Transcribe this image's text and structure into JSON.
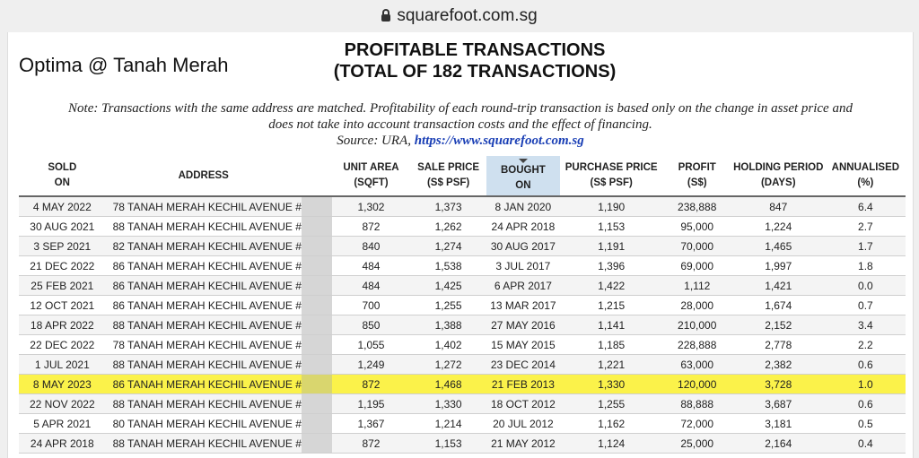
{
  "browser": {
    "url": "squarefoot.com.sg"
  },
  "header": {
    "project": "Optima @ Tanah Merah",
    "title_line1": "PROFITABLE TRANSACTIONS",
    "title_line2": "(TOTAL OF 182 TRANSACTIONS)"
  },
  "note": {
    "line1": "Note: Transactions with the same address are matched. Profitability of each round-trip transaction is based only on the change in asset price and",
    "line2": "does not take into account transaction costs and the effect of financing.",
    "source_label": "Source: URA,",
    "source_link": "https://www.squarefoot.com.sg"
  },
  "table": {
    "columns": [
      {
        "l1": "SOLD",
        "l2": "ON"
      },
      {
        "l1": "ADDRESS",
        "l2": ""
      },
      {
        "l1": "",
        "l2": ""
      },
      {
        "l1": "UNIT AREA",
        "l2": "(SQFT)"
      },
      {
        "l1": "SALE PRICE",
        "l2": "(S$ PSF)"
      },
      {
        "l1": "BOUGHT",
        "l2": "ON"
      },
      {
        "l1": "PURCHASE PRICE",
        "l2": "(S$ PSF)"
      },
      {
        "l1": "PROFIT",
        "l2": "(S$)"
      },
      {
        "l1": "HOLDING PERIOD",
        "l2": "(DAYS)"
      },
      {
        "l1": "ANNUALISED",
        "l2": "(%)"
      }
    ],
    "sorted_column": 5,
    "highlight_color": "#fbf24a",
    "rows": [
      [
        "4 MAY 2022",
        "78 TANAH MERAH KECHIL AVENUE #",
        "",
        "1,302",
        "1,373",
        "8 JAN 2020",
        "1,190",
        "238,888",
        "847",
        "6.4"
      ],
      [
        "30 AUG 2021",
        "88 TANAH MERAH KECHIL AVENUE #",
        "",
        "872",
        "1,262",
        "24 APR 2018",
        "1,153",
        "95,000",
        "1,224",
        "2.7"
      ],
      [
        "3 SEP 2021",
        "82 TANAH MERAH KECHIL AVENUE #",
        "",
        "840",
        "1,274",
        "30 AUG 2017",
        "1,191",
        "70,000",
        "1,465",
        "1.7"
      ],
      [
        "21 DEC 2022",
        "86 TANAH MERAH KECHIL AVENUE #",
        "",
        "484",
        "1,538",
        "3 JUL 2017",
        "1,396",
        "69,000",
        "1,997",
        "1.8"
      ],
      [
        "25 FEB 2021",
        "86 TANAH MERAH KECHIL AVENUE #",
        "",
        "484",
        "1,425",
        "6 APR 2017",
        "1,422",
        "1,112",
        "1,421",
        "0.0"
      ],
      [
        "12 OCT 2021",
        "86 TANAH MERAH KECHIL AVENUE #",
        "",
        "700",
        "1,255",
        "13 MAR 2017",
        "1,215",
        "28,000",
        "1,674",
        "0.7"
      ],
      [
        "18 APR 2022",
        "88 TANAH MERAH KECHIL AVENUE #",
        "",
        "850",
        "1,388",
        "27 MAY 2016",
        "1,141",
        "210,000",
        "2,152",
        "3.4"
      ],
      [
        "22 DEC 2022",
        "78 TANAH MERAH KECHIL AVENUE #",
        "",
        "1,055",
        "1,402",
        "15 MAY 2015",
        "1,185",
        "228,888",
        "2,778",
        "2.2"
      ],
      [
        "1 JUL 2021",
        "88 TANAH MERAH KECHIL AVENUE #",
        "",
        "1,249",
        "1,272",
        "23 DEC 2014",
        "1,221",
        "63,000",
        "2,382",
        "0.6"
      ],
      [
        "8 MAY 2023",
        "86 TANAH MERAH KECHIL AVENUE #",
        "",
        "872",
        "1,468",
        "21 FEB 2013",
        "1,330",
        "120,000",
        "3,728",
        "1.0"
      ],
      [
        "22 NOV 2022",
        "88 TANAH MERAH KECHIL AVENUE #",
        "",
        "1,195",
        "1,330",
        "18 OCT 2012",
        "1,255",
        "88,888",
        "3,687",
        "0.6"
      ],
      [
        "5 APR 2021",
        "80 TANAH MERAH KECHIL AVENUE #",
        "",
        "1,367",
        "1,214",
        "20 JUL 2012",
        "1,162",
        "72,000",
        "3,181",
        "0.5"
      ],
      [
        "24 APR 2018",
        "88 TANAH MERAH KECHIL AVENUE #",
        "",
        "872",
        "1,153",
        "21 MAY 2012",
        "1,124",
        "25,000",
        "2,164",
        "0.4"
      ]
    ],
    "highlighted_row": 9
  }
}
